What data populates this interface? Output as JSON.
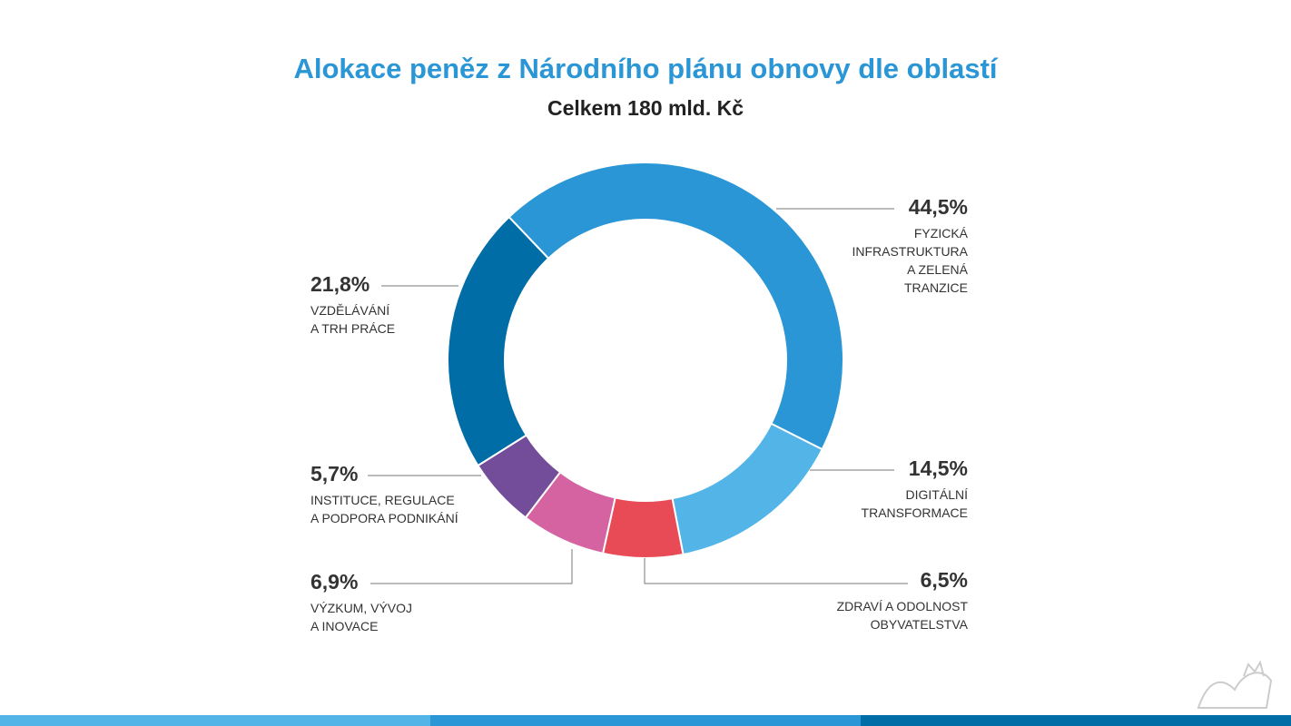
{
  "chart_data": {
    "type": "pie",
    "title": "Alokace peněz z Národního plánu obnovy dle oblastí",
    "subtitle": "Celkem 180 mld. Kč",
    "categories": [
      "FYZICKÁ\nINFRASTRUKTURA\nA ZELENÁ\nTRANZICE",
      "DIGITÁLNÍ\nTRANSFORMACE",
      "ZDRAVÍ A ODOLNOST\nOBYVATELSTVA",
      "VÝZKUM, VÝVOJ\nA INOVACE",
      "INSTITUCE, REGULACE\nA PODPORA PODNIKÁNÍ",
      "VZDĚLÁVÁNÍ\nA TRH PRÁCE"
    ],
    "values": [
      44.5,
      14.5,
      6.5,
      6.9,
      5.7,
      21.8
    ],
    "value_labels": [
      "44,5%",
      "14,5%",
      "6,5%",
      "6,9%",
      "5,7%",
      "21,8%"
    ],
    "colors": [
      "#2a96d5",
      "#52b4e7",
      "#e84b55",
      "#d563a1",
      "#744d9a",
      "#006da7"
    ]
  }
}
